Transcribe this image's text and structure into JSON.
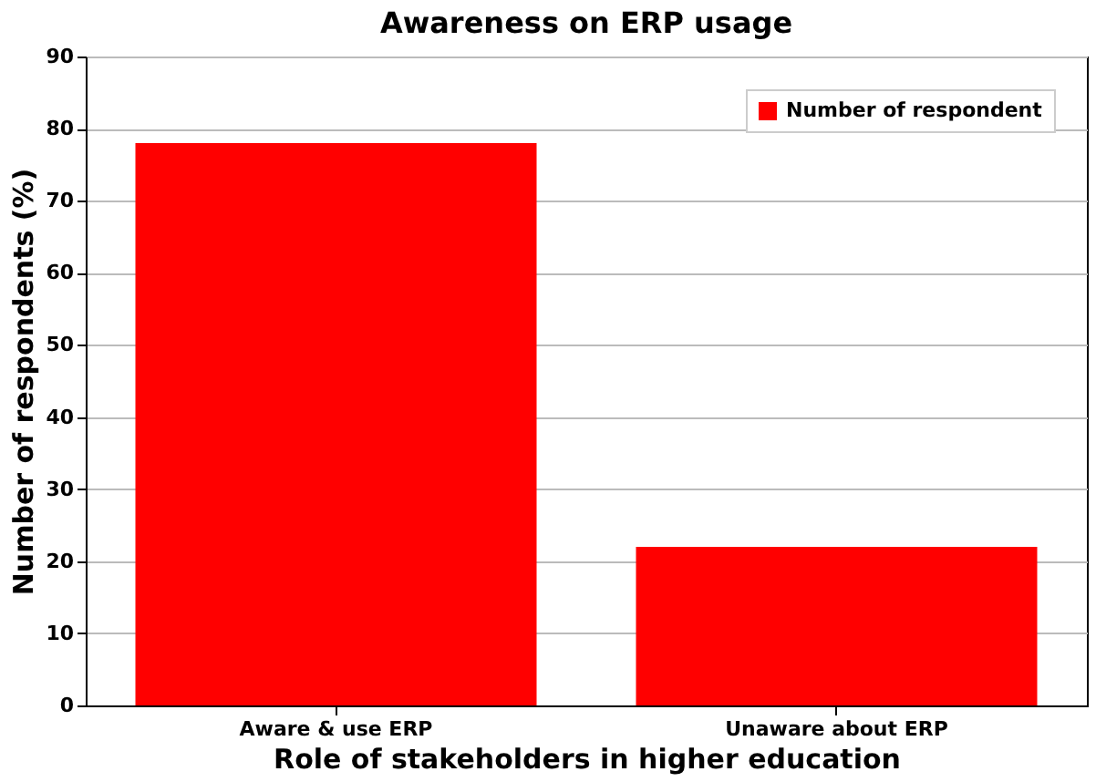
{
  "chart_data": {
    "type": "bar",
    "title": "Awareness on ERP usage",
    "xlabel": "Role of stakeholders in higher education",
    "ylabel": "Number of respondents (%)",
    "categories": [
      "Aware & use ERP",
      "Unaware about ERP"
    ],
    "series": [
      {
        "name": "Number of respondent",
        "color": "#ff0000",
        "values": [
          78,
          22
        ]
      }
    ],
    "ylim": [
      0,
      90
    ],
    "yticks": [
      0,
      10,
      20,
      30,
      40,
      50,
      60,
      70,
      80,
      90
    ],
    "grid": "y",
    "legend": "top right"
  }
}
